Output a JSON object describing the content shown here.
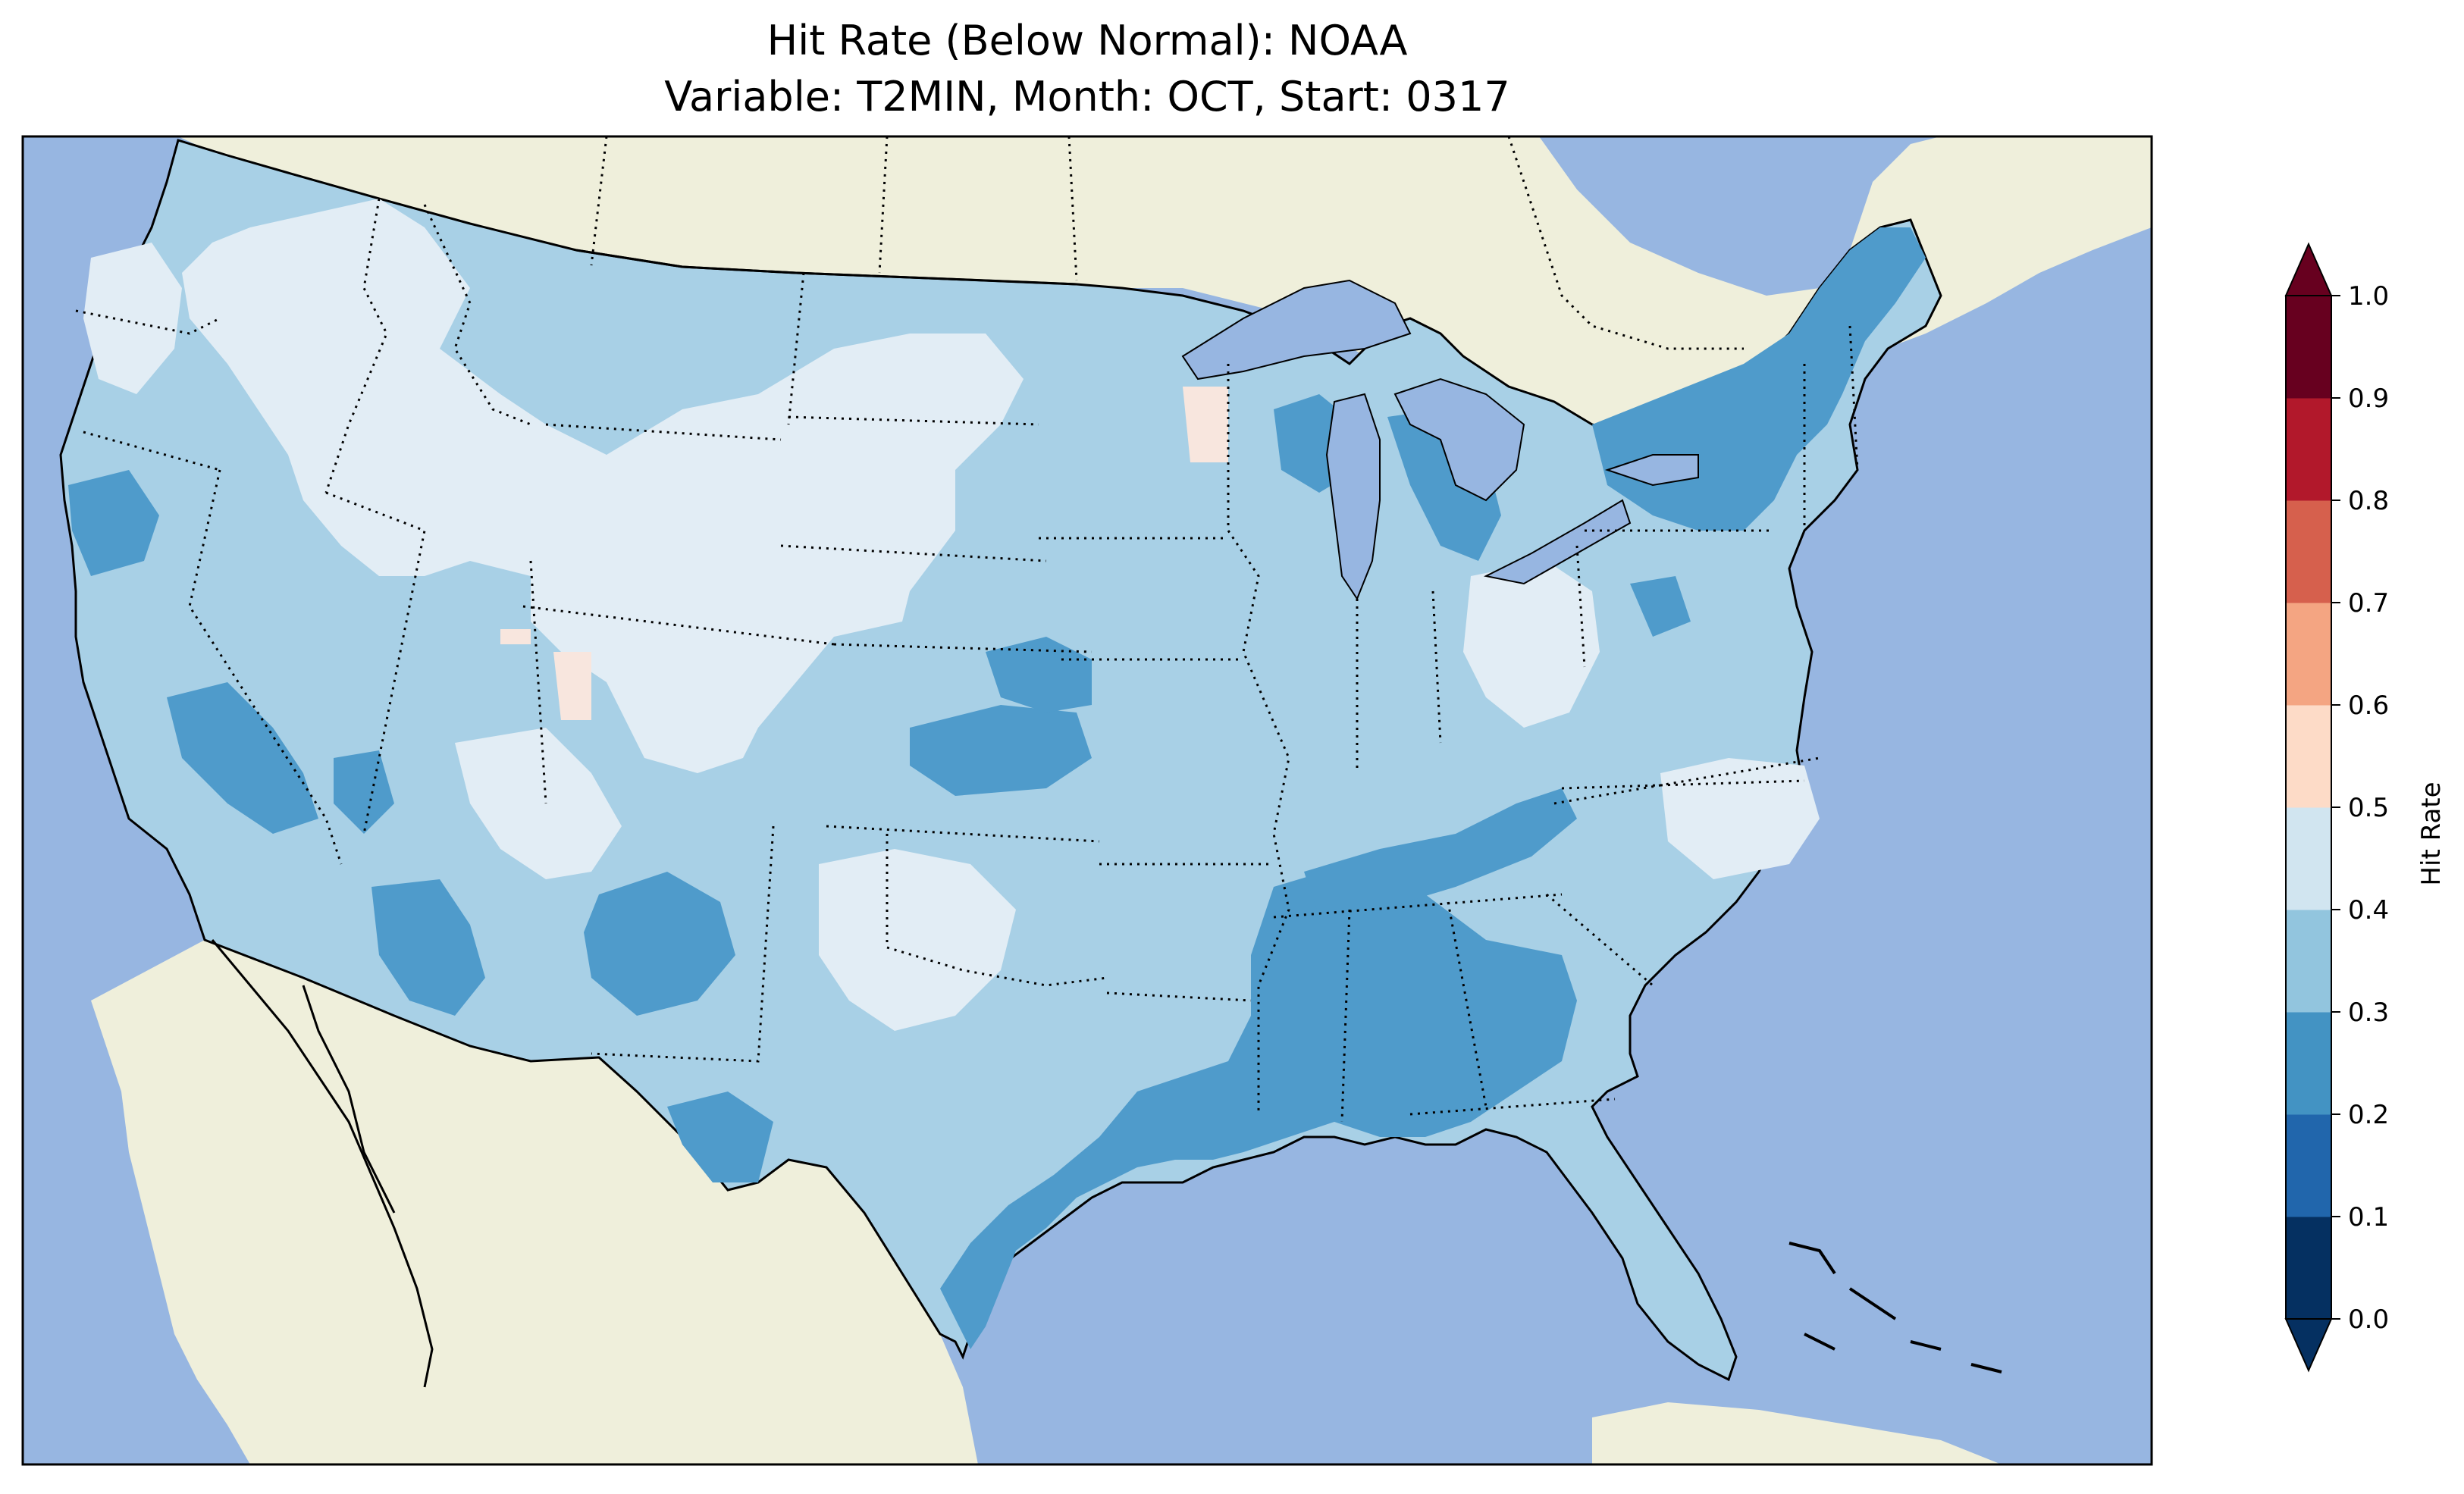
{
  "title": {
    "line1": "Hit Rate (Below Normal): NOAA",
    "line2": "Variable: T2MIN, Month: OCT, Start: 0317"
  },
  "colorbar": {
    "label": "Hit Rate",
    "ticks": [
      "0.0",
      "0.1",
      "0.2",
      "0.3",
      "0.4",
      "0.5",
      "0.6",
      "0.7",
      "0.8",
      "0.9",
      "1.0"
    ],
    "bin_colors": [
      "#053061",
      "#2166ac",
      "#4393c3",
      "#92c5de",
      "#d1e5f0",
      "#fddbc7",
      "#f4a582",
      "#d6604d",
      "#b2182b",
      "#67001f"
    ],
    "extend": "both"
  },
  "colors": {
    "ocean": "#97b6e1",
    "land": "#efefdb",
    "hr_20_30": "#4f9bcb",
    "hr_30_40": "#a8d0e6",
    "hr_40_50": "#e2edf5",
    "hr_50_60": "#f8e6de"
  },
  "chart_data": {
    "type": "heatmap",
    "title": "Hit Rate (Below Normal): NOAA\nVariable: T2MIN, Month: OCT, Start: 0317",
    "colorbar_label": "Hit Rate",
    "vmin": 0.0,
    "vmax": 1.0,
    "levels": [
      0.0,
      0.1,
      0.2,
      0.3,
      0.4,
      0.5,
      0.6,
      0.7,
      0.8,
      0.9,
      1.0
    ],
    "region": "Contiguous United States",
    "dominant_ranges": [
      "0.2-0.3",
      "0.3-0.4",
      "0.4-0.5"
    ],
    "max_patches_range": "0.5-0.6"
  }
}
